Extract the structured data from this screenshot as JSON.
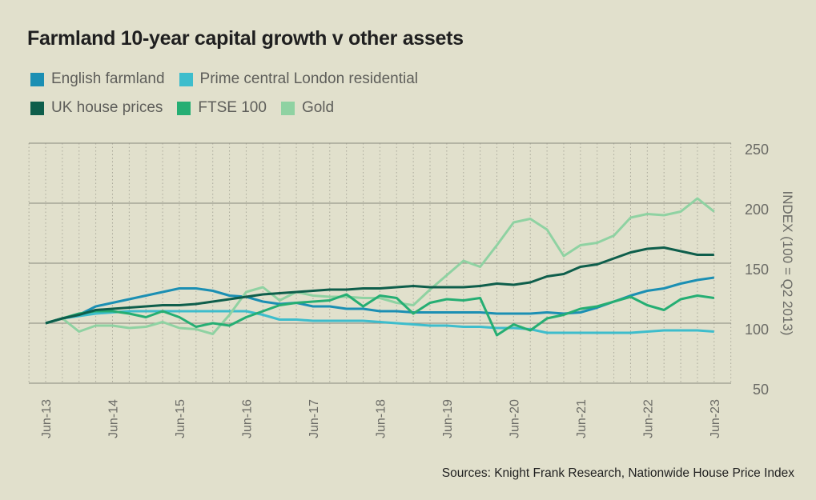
{
  "chart_data": {
    "type": "line",
    "title": "Farmland 10-year capital growth v other assets",
    "ylabel": "INDEX (100 = Q2 2013)",
    "xlabel": "",
    "ylim": [
      50,
      250
    ],
    "yticks": [
      50,
      100,
      150,
      200,
      250
    ],
    "x_tick_labels": [
      "Jun-13",
      "Jun-14",
      "Jun-15",
      "Jun-16",
      "Jun-17",
      "Jun-18",
      "Jun-19",
      "Jun-20",
      "Jun-21",
      "Jun-22",
      "Jun-23"
    ],
    "x_frequency": "quarterly",
    "x_range": [
      "Jun-13",
      "Jun-23"
    ],
    "grid": {
      "horizontal": "solid",
      "vertical": "dotted quarterly"
    },
    "legend_placement": "top-left",
    "series": [
      {
        "name": "English farmland",
        "color": "#1b8fb3",
        "values": [
          100,
          104,
          107,
          114,
          117,
          120,
          123,
          126,
          129,
          129,
          127,
          123,
          122,
          118,
          116,
          117,
          114,
          114,
          112,
          112,
          110,
          110,
          109,
          109,
          109,
          109,
          109,
          108,
          108,
          108,
          109,
          108,
          109,
          113,
          118,
          123,
          127,
          129,
          133,
          136,
          138
        ]
      },
      {
        "name": "Prime central London residential",
        "color": "#3dbdcc",
        "values": [
          100,
          104,
          106,
          108,
          109,
          110,
          110,
          110,
          110,
          110,
          110,
          110,
          110,
          107,
          103,
          103,
          102,
          102,
          102,
          102,
          101,
          100,
          99,
          98,
          98,
          97,
          97,
          96,
          96,
          95,
          92,
          92,
          92,
          92,
          92,
          92,
          93,
          94,
          94,
          94,
          93
        ]
      },
      {
        "name": "UK house prices",
        "color": "#0e5e4b",
        "values": [
          100,
          104,
          107,
          111,
          112,
          113,
          114,
          115,
          115,
          116,
          118,
          120,
          122,
          124,
          125,
          126,
          127,
          128,
          128,
          129,
          129,
          130,
          131,
          130,
          130,
          130,
          131,
          133,
          132,
          134,
          139,
          141,
          147,
          149,
          154,
          159,
          162,
          163,
          160,
          157,
          157
        ]
      },
      {
        "name": "FTSE 100",
        "color": "#25ae73",
        "values": [
          100,
          104,
          108,
          110,
          110,
          108,
          105,
          110,
          105,
          97,
          100,
          98,
          105,
          110,
          115,
          117,
          118,
          119,
          124,
          114,
          123,
          121,
          108,
          117,
          120,
          119,
          121,
          90,
          99,
          94,
          104,
          107,
          112,
          114,
          118,
          122,
          115,
          111,
          120,
          123,
          121
        ]
      },
      {
        "name": "Gold",
        "color": "#8fd2a2",
        "values": [
          100,
          104,
          93,
          98,
          98,
          96,
          97,
          101,
          96,
          95,
          91,
          107,
          126,
          130,
          119,
          126,
          123,
          122,
          122,
          121,
          121,
          117,
          115,
          128,
          140,
          152,
          147,
          165,
          184,
          187,
          178,
          156,
          165,
          167,
          173,
          188,
          191,
          190,
          193,
          204,
          193
        ]
      }
    ]
  },
  "source": "Sources: Knight Frank Research, Nationwide House Price Index"
}
